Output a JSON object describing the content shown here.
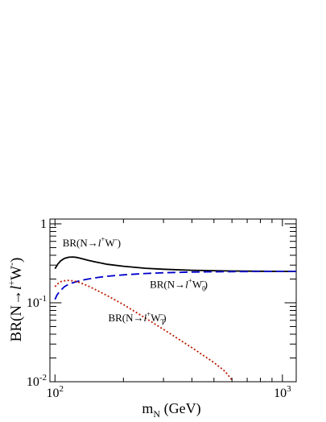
{
  "chart_data": {
    "type": "line",
    "xscale": "log",
    "yscale": "log",
    "xlim": [
      95,
      1150
    ],
    "ylim": [
      0.01,
      1.15
    ],
    "xlabel": {
      "main": "m",
      "sub": "N",
      "rest": " (GeV)"
    },
    "ylabel": {
      "pre": "BR(N",
      "arrow": "→",
      "ell": "l",
      "sup1": "+",
      "W": "W",
      "sup2": "-",
      "post": ")"
    },
    "x_tick_labels": [
      {
        "value": 100,
        "base": "10",
        "exp": "2"
      },
      {
        "value": 1000,
        "base": "10",
        "exp": "3"
      }
    ],
    "y_tick_labels": [
      {
        "value": 1,
        "base": "1",
        "exp": ""
      },
      {
        "value": 0.1,
        "base": "10",
        "exp": "-1"
      },
      {
        "value": 0.01,
        "base": "10",
        "exp": "-2"
      }
    ],
    "grid": false,
    "series": [
      {
        "color": "#000000",
        "dash": "solid",
        "x": [
          100,
          103,
          106,
          110,
          115,
          120,
          125,
          130,
          140,
          150,
          170,
          200,
          250,
          300,
          400,
          500,
          600,
          800,
          1000,
          1150
        ],
        "y": [
          0.27,
          0.31,
          0.34,
          0.365,
          0.378,
          0.38,
          0.375,
          0.365,
          0.345,
          0.33,
          0.307,
          0.29,
          0.274,
          0.266,
          0.258,
          0.255,
          0.253,
          0.251,
          0.25,
          0.25
        ]
      },
      {
        "color": "#0000cc",
        "dash": "dashed",
        "x": [
          100,
          102,
          105,
          110,
          115,
          120,
          130,
          140,
          150,
          170,
          200,
          250,
          300,
          400,
          500,
          600,
          800,
          1000,
          1150
        ],
        "y": [
          0.11,
          0.125,
          0.14,
          0.16,
          0.172,
          0.18,
          0.192,
          0.2,
          0.207,
          0.217,
          0.226,
          0.235,
          0.24,
          0.245,
          0.247,
          0.248,
          0.249,
          0.25,
          0.25
        ]
      },
      {
        "color": "#bb1a00",
        "dash": "dotted",
        "x": [
          100,
          103,
          106,
          110,
          115,
          120,
          125,
          130,
          140,
          150,
          170,
          200,
          250,
          300,
          400,
          500,
          560,
          600
        ],
        "y": [
          0.16,
          0.175,
          0.185,
          0.19,
          0.192,
          0.19,
          0.185,
          0.178,
          0.163,
          0.148,
          0.123,
          0.095,
          0.064,
          0.046,
          0.027,
          0.0175,
          0.0135,
          0.0105
        ]
      }
    ],
    "annotations": [
      {
        "text_pre": "BR(N",
        "arrow": "→",
        "ell": "l",
        "sup": "+",
        "W": "W",
        "sub": "",
        "sup2": "-",
        "post": ")",
        "x": 145,
        "y": 0.52
      },
      {
        "text_pre": "BR(N",
        "arrow": "→",
        "ell": "l",
        "sup": "+",
        "W": "W",
        "sub": "0",
        "sup2": "-",
        "post": ")",
        "x": 350,
        "y": 0.155
      },
      {
        "text_pre": "BR(N",
        "arrow": "→",
        "ell": "l",
        "sup": "+",
        "W": "W",
        "sub": "T",
        "sup2": "-",
        "post": ")",
        "x": 230,
        "y": 0.058
      }
    ]
  }
}
